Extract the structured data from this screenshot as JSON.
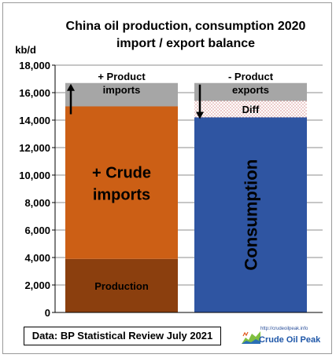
{
  "chart_data": {
    "type": "bar",
    "title_lines": [
      "China oil production, consumption 2020",
      "import / export balance"
    ],
    "ylabel": "kb/d",
    "ylim": [
      0,
      18000
    ],
    "yticks": [
      0,
      2000,
      4000,
      6000,
      8000,
      10000,
      12000,
      14000,
      16000,
      18000
    ],
    "ytick_labels": [
      "0",
      "2,000",
      "4,000",
      "6,000",
      "8,000",
      "10,000",
      "12,000",
      "14,000",
      "16,000",
      "18,000"
    ],
    "grid": true,
    "categories": [
      "",
      ""
    ],
    "stacks": [
      {
        "segments": [
          {
            "label": "Production",
            "from": 0,
            "to": 3900,
            "color": "#8b3f0e"
          },
          {
            "label_lines": [
              "+ Crude",
              "imports"
            ],
            "from": 3900,
            "to": 15000,
            "color": "#cc5f15"
          },
          {
            "label_lines": [
              "+ Product",
              "imports"
            ],
            "from": 15000,
            "to": 16700,
            "color": "#a6a6a6"
          }
        ],
        "arrow": "up"
      },
      {
        "segments": [
          {
            "label": "Consumption",
            "from": 0,
            "to": 14200,
            "color": "#2f55a2"
          },
          {
            "label": "Diff",
            "from": 14200,
            "to": 15400,
            "color": "#ffffff",
            "pattern": "dots"
          },
          {
            "label_lines": [
              "- Product",
              "exports"
            ],
            "from": 15400,
            "to": 16700,
            "color": "#a6a6a6"
          }
        ],
        "arrow": "down"
      }
    ]
  },
  "source_text": "Data: BP Statistical Review  July 2021",
  "logo": {
    "url": "http://crudeoilpeak.info",
    "name": "Crude Oil Peak"
  }
}
